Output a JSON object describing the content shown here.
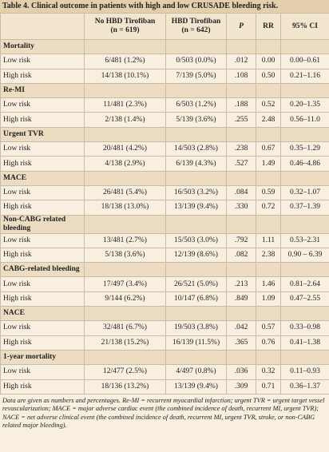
{
  "title": "Table 4. Clinical outcome in patients with high and low CRUSADE bleeding risk.",
  "header": [
    [],
    [
      "No HBD Tirofiban",
      "(n = 619)"
    ],
    [
      "HBD Tirofiban",
      "(n = 642)"
    ],
    [
      "P"
    ],
    [
      "RR"
    ],
    [
      "95% CI"
    ]
  ],
  "sections": [
    {
      "name": "Mortality",
      "rows": [
        [
          "Low risk",
          "6/481 (1.2%)",
          "0/503 (0.0%)",
          ".012",
          "0.00",
          "0.00–0.61"
        ],
        [
          "High risk",
          "14/138 (10.1%)",
          "7/139 (5.0%)",
          ".108",
          "0.50",
          "0.21–1.16"
        ]
      ]
    },
    {
      "name": "Re-MI",
      "rows": [
        [
          "Low risk",
          "11/481 (2.3%)",
          "6/503 (1.2%)",
          ".188",
          "0.52",
          "0.20–1.35"
        ],
        [
          "High risk",
          "2/138 (1.4%)",
          "5/139 (3.6%)",
          ".255",
          "2.48",
          "0.56–11.0"
        ]
      ]
    },
    {
      "name": "Urgent TVR",
      "rows": [
        [
          "Low risk",
          "20/481 (4.2%)",
          "14/503 (2.8%)",
          ".238",
          "0.67",
          "0.35–1.29"
        ],
        [
          "High risk",
          "4/138 (2.9%)",
          "6/139 (4.3%)",
          ".527",
          "1.49",
          "0.46–4.86"
        ]
      ]
    },
    {
      "name": "MACE",
      "rows": [
        [
          "Low risk",
          "26/481 (5.4%)",
          "16/503 (3.2%)",
          ".084",
          "0.59",
          "0.32–1.07"
        ],
        [
          "High risk",
          "18/138 (13.0%)",
          "13/139 (9.4%)",
          ".330",
          "0.72",
          "0.37–1.39"
        ]
      ]
    },
    {
      "name": "Non-CABG related bleeding",
      "rows": [
        [
          "Low risk",
          "13/481 (2.7%)",
          "15/503 (3.0%)",
          ".792",
          "1.11",
          "0.53–2.31"
        ],
        [
          "High risk",
          "5/138 (3.6%)",
          "12/139 (8.6%)",
          ".082",
          "2.38",
          "0.90 – 6.39"
        ]
      ]
    },
    {
      "name": "CABG-related bleeding",
      "rows": [
        [
          "Low risk",
          "17/497 (3.4%)",
          "26/521 (5.0%)",
          ".213",
          "1.46",
          "0.81–2.64"
        ],
        [
          "High risk",
          "9/144 (6.2%)",
          "10/147 (6.8%)",
          ".849",
          "1.09",
          "0.47–2.55"
        ]
      ]
    },
    {
      "name": "NACE",
      "rows": [
        [
          "Low risk",
          "32/481 (6.7%)",
          "19/503 (3.8%)",
          ".042",
          "0.57",
          "0.33–0.98"
        ],
        [
          "High risk",
          "21/138 (15.2%)",
          "16/139 (11.5%)",
          ".365",
          "0.76",
          "0.41–1.38"
        ]
      ]
    },
    {
      "name": "1-year mortality",
      "rows": [
        [
          "Low risk",
          "12/477 (2.5%)",
          "4/497 (0.8%)",
          ".036",
          "0.32",
          "0.11–0.93"
        ],
        [
          "High risk",
          "18/136 (13.2%)",
          "13/139 (9.4%)",
          ".309",
          "0.71",
          "0.36–1.37"
        ]
      ]
    }
  ],
  "footnote": "Data are given as numbers and percentages. Re-MI = recurrent myocardial infarction; urgent TVR = urgent target vessel revascularization; MACE = major adverse cardiac event (the combined incidence of death, recurrent MI, urgent TVR); NACE = net adverse clinical event (the combined incidence of death, recurrent MI, urgent TVR, stroke, or non-CABG related major bleeding)."
}
